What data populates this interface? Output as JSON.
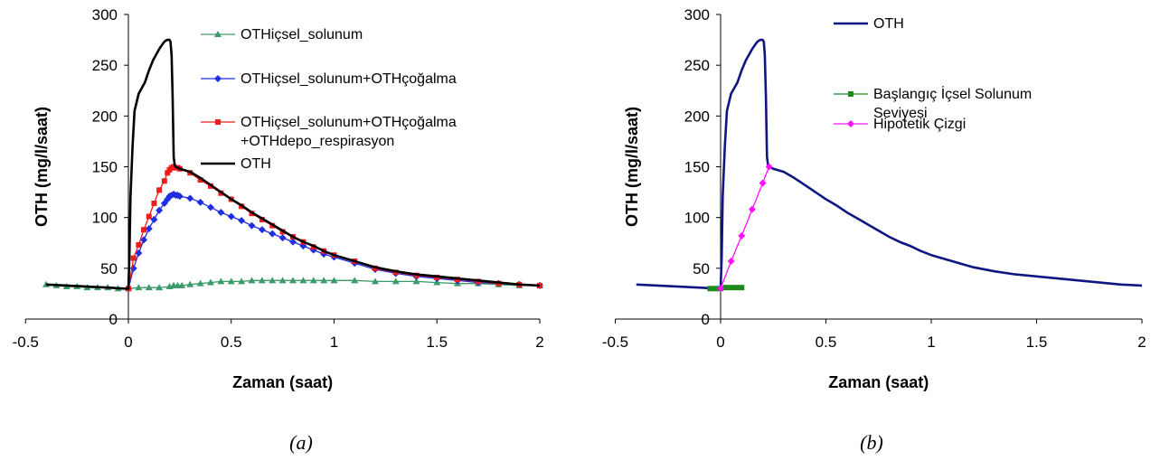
{
  "chart_data": [
    {
      "type": "line",
      "caption": "(a)",
      "xlabel": "Zaman (saat)",
      "ylabel": "OTH (mg/l/saat)",
      "xlim": [
        -0.5,
        2
      ],
      "ylim": [
        0,
        300
      ],
      "xticks": [
        "-0.5",
        "0",
        "0.5",
        "1",
        "1.5",
        "2"
      ],
      "yticks": [
        "0",
        "50",
        "100",
        "150",
        "200",
        "250",
        "300"
      ],
      "grid": false,
      "legend_position": "top-right",
      "series": [
        {
          "name": "OTHiçsel_solunum",
          "color": "#3a9a6a",
          "marker": "triangle",
          "x": [
            -0.4,
            -0.35,
            -0.3,
            -0.25,
            -0.2,
            -0.15,
            -0.1,
            -0.05,
            0,
            0.05,
            0.1,
            0.15,
            0.2,
            0.22,
            0.24,
            0.26,
            0.3,
            0.35,
            0.4,
            0.45,
            0.5,
            0.55,
            0.6,
            0.65,
            0.7,
            0.75,
            0.8,
            0.85,
            0.9,
            0.95,
            1.0,
            1.1,
            1.2,
            1.3,
            1.4,
            1.5,
            1.6,
            1.7,
            1.8,
            1.9,
            2.0
          ],
          "y": [
            34,
            33,
            32,
            32,
            31,
            31,
            31,
            30,
            30,
            31,
            31,
            31,
            32,
            33,
            33,
            33,
            34,
            35,
            36,
            37,
            37,
            37,
            38,
            38,
            38,
            38,
            38,
            38,
            38,
            38,
            38,
            38,
            37,
            37,
            37,
            36,
            35,
            35,
            34,
            33,
            33
          ]
        },
        {
          "name": "OTHiçsel_solunum+OTHçoğalma",
          "color": "#1f2ee0",
          "marker": "diamond",
          "x": [
            0,
            0.025,
            0.05,
            0.075,
            0.1,
            0.125,
            0.15,
            0.175,
            0.19,
            0.2,
            0.21,
            0.22,
            0.23,
            0.24,
            0.25,
            0.3,
            0.35,
            0.4,
            0.45,
            0.5,
            0.55,
            0.6,
            0.65,
            0.7,
            0.75,
            0.8,
            0.85,
            0.9,
            0.95,
            1.0,
            1.1,
            1.2,
            1.3,
            1.4,
            1.5,
            1.6,
            1.7,
            1.8,
            1.9,
            2.0
          ],
          "y": [
            30,
            50,
            65,
            78,
            89,
            98,
            107,
            114,
            118,
            121,
            122,
            123,
            122,
            122,
            121,
            119,
            115,
            110,
            105,
            101,
            97,
            92,
            88,
            84,
            80,
            76,
            72,
            68,
            64,
            61,
            55,
            49,
            45,
            42,
            40,
            38,
            36,
            35,
            34,
            33
          ]
        },
        {
          "name": "OTHiçsel_solunum+OTHçoğalma +OTHdepo_respirasyon",
          "color": "#ee1c1c",
          "marker": "square",
          "x": [
            0,
            0.025,
            0.05,
            0.075,
            0.1,
            0.125,
            0.15,
            0.175,
            0.19,
            0.2,
            0.21,
            0.22,
            0.23,
            0.24,
            0.25,
            0.3,
            0.35,
            0.4,
            0.45,
            0.5,
            0.55,
            0.6,
            0.65,
            0.7,
            0.75,
            0.8,
            0.85,
            0.9,
            0.95,
            1.0,
            1.1,
            1.2,
            1.3,
            1.4,
            1.5,
            1.6,
            1.7,
            1.8,
            1.9,
            2.0
          ],
          "y": [
            30,
            60,
            73,
            88,
            101,
            114,
            127,
            136,
            144,
            147,
            149,
            150,
            149,
            149,
            148,
            144,
            137,
            131,
            124,
            118,
            111,
            104,
            98,
            92,
            86,
            81,
            76,
            71,
            67,
            63,
            57,
            50,
            46,
            43,
            41,
            39,
            37,
            35,
            34,
            33
          ]
        },
        {
          "name": "OTH",
          "color": "#000000",
          "marker": "none",
          "x": [
            -0.4,
            -0.3,
            -0.2,
            -0.1,
            -0.02,
            0,
            0.005,
            0.01,
            0.02,
            0.03,
            0.05,
            0.08,
            0.1,
            0.12,
            0.15,
            0.17,
            0.18,
            0.19,
            0.2,
            0.205,
            0.21,
            0.215,
            0.22,
            0.225,
            0.23,
            0.25,
            0.3,
            0.35,
            0.4,
            0.45,
            0.5,
            0.55,
            0.6,
            0.65,
            0.7,
            0.75,
            0.8,
            0.85,
            0.9,
            0.95,
            1.0,
            1.1,
            1.2,
            1.3,
            1.4,
            1.5,
            1.6,
            1.7,
            1.8,
            1.9,
            2.0
          ],
          "y": [
            34,
            33,
            32,
            31,
            30,
            30,
            60,
            120,
            170,
            205,
            222,
            233,
            245,
            255,
            266,
            272,
            274,
            275,
            275,
            273,
            260,
            220,
            160,
            152,
            150,
            148,
            145,
            139,
            132,
            125,
            118,
            112,
            105,
            99,
            93,
            87,
            81,
            76,
            72,
            67,
            63,
            57,
            51,
            47,
            44,
            42,
            40,
            38,
            36,
            34,
            33
          ]
        }
      ]
    },
    {
      "type": "line",
      "caption": "(b)",
      "xlabel": "Zaman (saat)",
      "ylabel": "OTH (mg/l/saat)",
      "xlim": [
        -0.5,
        2
      ],
      "ylim": [
        0,
        300
      ],
      "xticks": [
        "-0.5",
        "0",
        "0.5",
        "1",
        "1.5",
        "2"
      ],
      "yticks": [
        "0",
        "50",
        "100",
        "150",
        "200",
        "250",
        "300"
      ],
      "grid": false,
      "legend_position": "top-right",
      "series": [
        {
          "name": "OTH",
          "color": "#0f1680",
          "marker": "none",
          "x": [
            -0.4,
            -0.3,
            -0.2,
            -0.1,
            -0.02,
            0,
            0.005,
            0.01,
            0.02,
            0.03,
            0.05,
            0.08,
            0.1,
            0.12,
            0.15,
            0.17,
            0.18,
            0.19,
            0.2,
            0.205,
            0.21,
            0.215,
            0.22,
            0.225,
            0.23,
            0.25,
            0.3,
            0.35,
            0.4,
            0.45,
            0.5,
            0.55,
            0.6,
            0.65,
            0.7,
            0.75,
            0.8,
            0.85,
            0.9,
            0.95,
            1.0,
            1.1,
            1.2,
            1.3,
            1.4,
            1.5,
            1.6,
            1.7,
            1.8,
            1.9,
            2.0
          ],
          "y": [
            34,
            33,
            32,
            31,
            30,
            30,
            60,
            120,
            170,
            205,
            222,
            233,
            245,
            255,
            266,
            272,
            274,
            275,
            275,
            273,
            260,
            220,
            160,
            152,
            150,
            148,
            145,
            139,
            132,
            125,
            118,
            112,
            105,
            99,
            93,
            87,
            81,
            76,
            72,
            67,
            63,
            57,
            51,
            47,
            44,
            42,
            40,
            38,
            36,
            34,
            33
          ]
        },
        {
          "name": "Başlangıç İçsel Solunum Seviyesi",
          "color": "#1e8a1e",
          "marker": "square",
          "x": [
            -0.05,
            -0.025,
            0,
            0.025,
            0.05,
            0.075,
            0.1
          ],
          "y": [
            30,
            30,
            30,
            31,
            31,
            31,
            31
          ]
        },
        {
          "name": "Hipotetik Çizgi",
          "color": "#ff10ff",
          "marker": "diamond",
          "x": [
            0,
            0.05,
            0.1,
            0.15,
            0.2,
            0.23
          ],
          "y": [
            30,
            57,
            82,
            108,
            134,
            150
          ]
        }
      ]
    }
  ]
}
